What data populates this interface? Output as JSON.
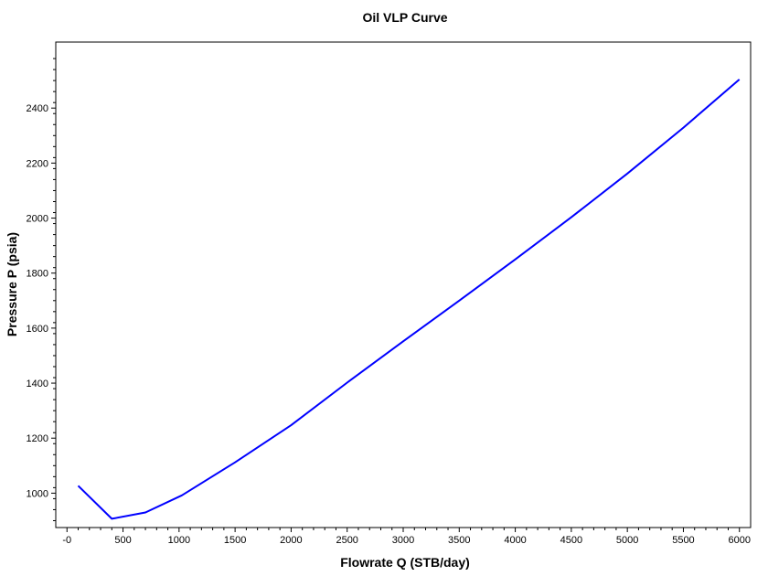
{
  "chart_data": {
    "type": "line",
    "title": "Oil VLP Curve",
    "xlabel": "Flowrate Q (STB/day)",
    "ylabel": "Pressure P (psia)",
    "xlim": [
      -100,
      6100
    ],
    "ylim": [
      875,
      2640
    ],
    "x_ticks": [
      0,
      500,
      1000,
      1500,
      2000,
      2500,
      3000,
      3500,
      4000,
      4500,
      5000,
      5500,
      6000
    ],
    "x_tick_labels": [
      "-0",
      "500",
      "1000",
      "1500",
      "2000",
      "2500",
      "3000",
      "3500",
      "4000",
      "4500",
      "5000",
      "5500",
      "6000"
    ],
    "y_ticks": [
      1000,
      1200,
      1400,
      1600,
      1800,
      2000,
      2200,
      2400
    ],
    "y_tick_labels": [
      "1000",
      "1200",
      "1400",
      "1600",
      "1800",
      "2000",
      "2200",
      "2400"
    ],
    "grid": false,
    "series": [
      {
        "color": "#0000ff",
        "x": [
          100,
          400,
          700,
          1025,
          1500,
          2000,
          2500,
          3000,
          3500,
          4000,
          4500,
          5000,
          5500,
          6000
        ],
        "y": [
          1027,
          907,
          930,
          992,
          1112,
          1247,
          1402,
          1552,
          1700,
          1850,
          2003,
          2162,
          2329,
          2504
        ]
      }
    ]
  }
}
